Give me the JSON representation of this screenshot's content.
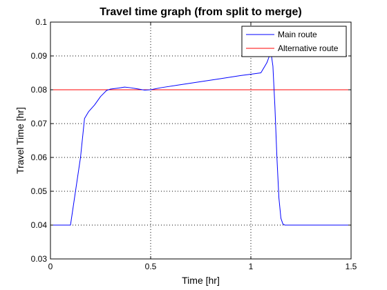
{
  "chart_data": {
    "type": "line",
    "title": "Travel time graph (from split to merge)",
    "xlabel": "Time [hr]",
    "ylabel": "Travel Time [hr]",
    "xlim": [
      0,
      1.5
    ],
    "ylim": [
      0.03,
      0.1
    ],
    "xticks": [
      0,
      0.5,
      1,
      1.5
    ],
    "xtick_labels": [
      "0",
      "0.5",
      "1",
      "1.5"
    ],
    "yticks": [
      0.03,
      0.04,
      0.05,
      0.06,
      0.07,
      0.08,
      0.09,
      0.1
    ],
    "ytick_labels": [
      "0.03",
      "0.04",
      "0.05",
      "0.06",
      "0.07",
      "0.08",
      "0.09",
      "0.1"
    ],
    "grid": true,
    "grid_style": "dotted",
    "legend_position": "top-right",
    "series": [
      {
        "name": "Main route",
        "color": "#0000ff",
        "x": [
          0,
          0.1,
          0.15,
          0.17,
          0.19,
          0.22,
          0.25,
          0.28,
          0.3,
          0.34,
          0.37,
          0.4,
          0.43,
          0.47,
          0.5,
          0.55,
          0.65,
          0.75,
          0.85,
          0.95,
          1.0,
          1.05,
          1.08,
          1.1,
          1.11,
          1.12,
          1.13,
          1.14,
          1.15,
          1.16,
          1.17,
          1.2,
          1.3,
          1.4,
          1.5
        ],
        "y": [
          0.04,
          0.04,
          0.06,
          0.0715,
          0.0735,
          0.0755,
          0.078,
          0.0798,
          0.0802,
          0.0805,
          0.0808,
          0.0806,
          0.0803,
          0.0799,
          0.08,
          0.0806,
          0.0815,
          0.0824,
          0.0833,
          0.0842,
          0.0846,
          0.085,
          0.088,
          0.0912,
          0.087,
          0.075,
          0.06,
          0.048,
          0.042,
          0.0403,
          0.04,
          0.04,
          0.04,
          0.04,
          0.04
        ]
      },
      {
        "name": "Alternative route",
        "color": "#ff0000",
        "x": [
          0,
          1.5
        ],
        "y": [
          0.08,
          0.08
        ]
      }
    ]
  }
}
